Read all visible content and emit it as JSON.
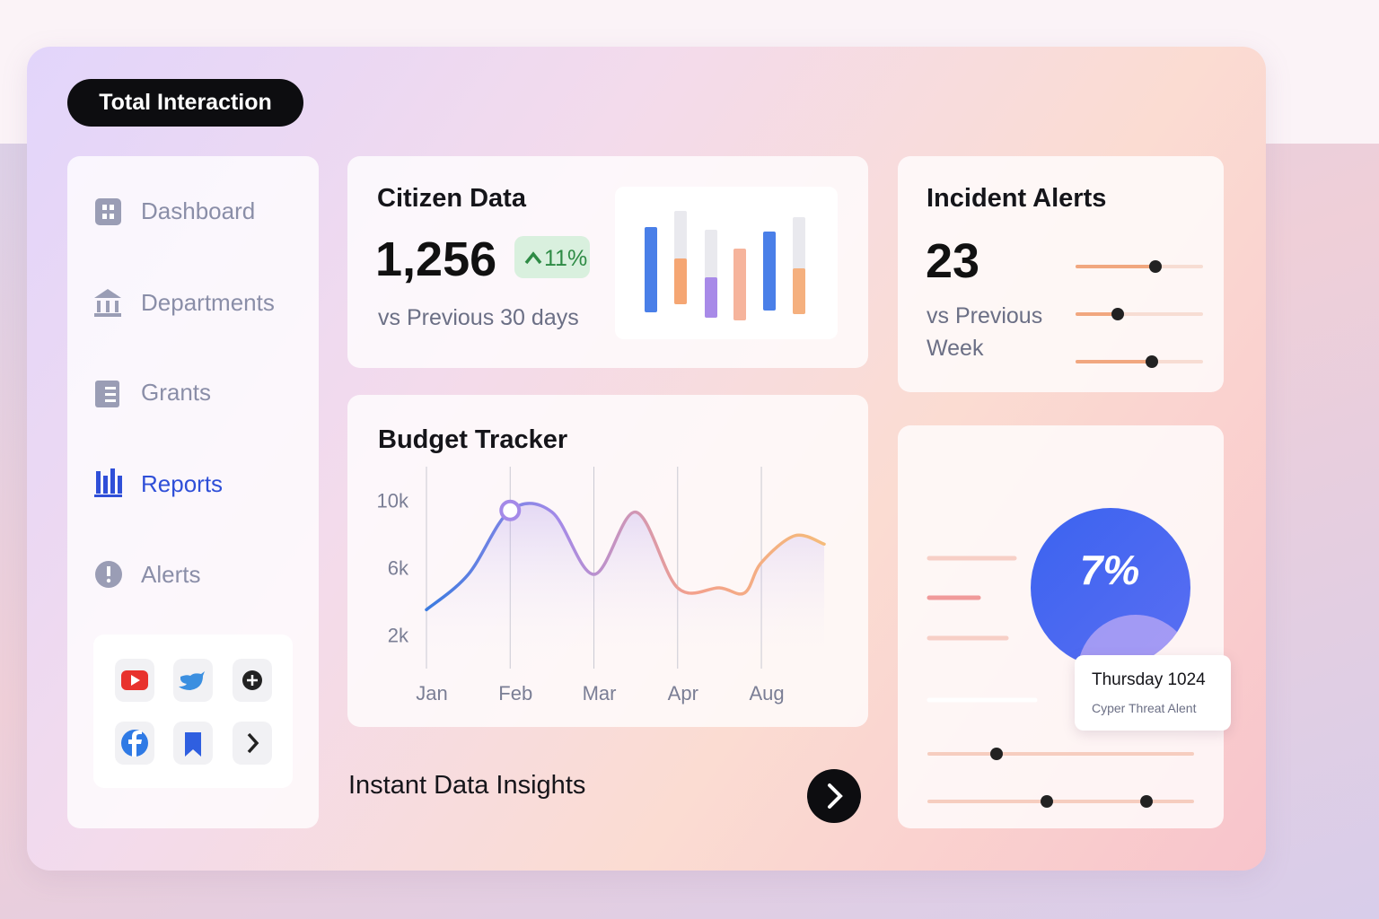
{
  "header": {
    "title": "Total Interaction"
  },
  "nav": {
    "items": [
      "Dashboard",
      "Departments",
      "Grants",
      "Reports",
      "Alerts"
    ],
    "active": 3
  },
  "citizen_data": {
    "title": "Citizen Data",
    "value": "1,256",
    "change": "11%",
    "subtitle": "vs Previous 30 days"
  },
  "incident_alerts": {
    "title": "Incident Alerts",
    "value": "23",
    "subtitle": "vs Previous Week"
  },
  "threat_card": {
    "percent": "7%",
    "tooltip_title": "Thursday 1024",
    "tooltip_text": "Cyper Threat Alent"
  },
  "footer": {
    "title": "Instant Data Insights"
  },
  "chart_data": {
    "type": "line",
    "title": "Budget Tracker",
    "x": [
      0,
      0.5,
      1,
      1.5,
      2,
      2.5,
      3,
      3.5,
      3.8,
      4,
      4.4,
      4.75
    ],
    "series": [
      {
        "color": [
          "#3b7be0",
          "#a48ae8",
          "#f3a08c",
          "#f5bb7a"
        ],
        "values": [
          3500,
          5600,
          9400,
          9300,
          5600,
          9300,
          4800,
          4800,
          4500,
          6300,
          7900,
          7400
        ]
      }
    ],
    "xlim": [
      0,
      4.75
    ],
    "xticks": [
      {
        "value": 0,
        "label": "Jan"
      },
      {
        "value": 1,
        "label": "Feb"
      },
      {
        "value": 2,
        "label": "Mar"
      },
      {
        "value": 3,
        "label": "Apr"
      },
      {
        "value": 4,
        "label": "Aug"
      }
    ],
    "ylim": [
      0,
      12000
    ],
    "yticks": [
      {
        "value": 10000,
        "label": "10k"
      },
      {
        "value": 6000,
        "label": "6k"
      },
      {
        "value": 2000,
        "label": "2k"
      }
    ],
    "grid": true
  }
}
